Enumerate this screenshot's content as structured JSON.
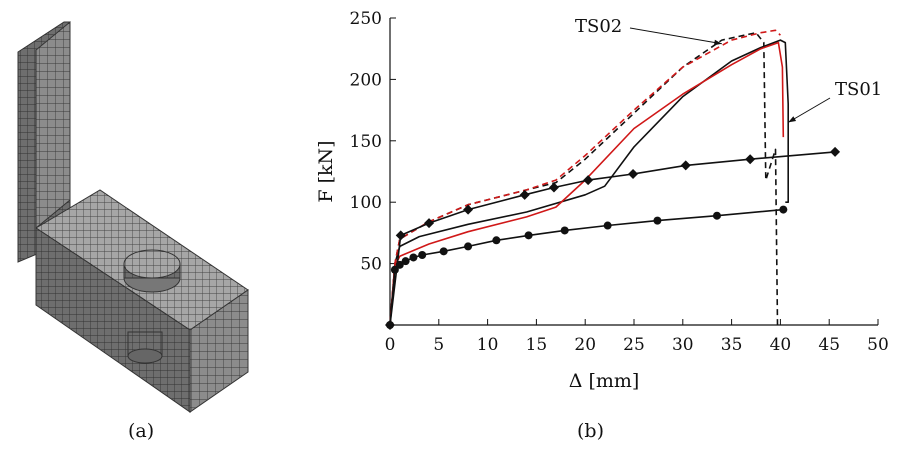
{
  "panels": {
    "a": {
      "label": "(a)"
    },
    "b": {
      "label": "(b)"
    }
  },
  "colors": {
    "axis": "#111111",
    "black_series": "#111111",
    "red_series": "#d01818",
    "mesh_face_front": "#8c8c8c",
    "mesh_face_side": "#6e6e6e",
    "mesh_face_top": "#a8a8a8",
    "mesh_line": "#3a3a3a"
  },
  "chart_data": {
    "type": "line",
    "title": "",
    "xlabel": "Δ [mm]",
    "ylabel": "F [kN]",
    "xlim": [
      0,
      50
    ],
    "ylim": [
      0,
      250
    ],
    "xticks": [
      0,
      5,
      10,
      15,
      20,
      25,
      30,
      35,
      40,
      45,
      50
    ],
    "yticks": [
      50,
      100,
      150,
      200,
      250
    ],
    "grid": false,
    "annotations": [
      {
        "text": "TS02",
        "arrow_to": [
          34,
          229
        ]
      },
      {
        "text": "TS01",
        "arrow_to": [
          40.8,
          165
        ]
      }
    ],
    "series": [
      {
        "color": "black",
        "style": "solid",
        "x": [
          0,
          0.5,
          1.0,
          3,
          8,
          14,
          20,
          22,
          25,
          30,
          35,
          38,
          40,
          40.5,
          40.8,
          40.8,
          40.5
        ],
        "y": [
          0,
          50,
          64,
          72,
          82,
          92,
          106,
          113,
          145,
          186,
          215,
          226,
          232,
          230,
          180,
          100,
          100
        ]
      },
      {
        "color": "black",
        "style": "dashed",
        "x": [
          0,
          0.5,
          1.0,
          4,
          8,
          14,
          17,
          20,
          24,
          30,
          34,
          37.5,
          38.3,
          38.5,
          39.5,
          39.7
        ],
        "y": [
          0,
          50,
          70,
          84,
          98,
          110,
          116,
          135,
          165,
          210,
          232,
          238,
          230,
          118,
          143,
          0
        ]
      },
      {
        "color": "red",
        "style": "solid",
        "x": [
          0,
          0.5,
          1.0,
          4,
          8,
          14,
          17,
          20,
          25,
          30,
          35,
          38,
          39.8,
          40.2,
          40.3
        ],
        "y": [
          0,
          48,
          56,
          66,
          76,
          88,
          96,
          118,
          160,
          188,
          212,
          225,
          230,
          210,
          153
        ]
      },
      {
        "color": "red",
        "style": "dashed",
        "x": [
          0,
          0.5,
          1.0,
          4,
          8,
          14,
          17,
          20,
          25,
          30,
          35,
          38,
          39.5,
          40
        ],
        "y": [
          0,
          50,
          70,
          84,
          98,
          110,
          118,
          138,
          175,
          210,
          232,
          238,
          240,
          236
        ]
      },
      {
        "color": "black",
        "style": "solid-diamond-markers",
        "x": [
          0,
          1.1,
          4.0,
          8.0,
          13.8,
          16.8,
          20.3,
          24.9,
          30.3,
          36.9,
          45.6
        ],
        "y": [
          0,
          73,
          83,
          94,
          106,
          112,
          118,
          123,
          130,
          135,
          141
        ]
      },
      {
        "color": "black",
        "style": "solid-circle-markers",
        "x": [
          0,
          0.5,
          1.0,
          1.6,
          2.4,
          3.3,
          5.5,
          8.0,
          10.9,
          14.2,
          17.9,
          22.3,
          27.4,
          33.5,
          40.3
        ],
        "y": [
          0,
          45,
          49,
          52,
          55,
          57,
          60,
          64,
          69,
          73,
          77,
          81,
          85,
          89,
          94
        ]
      }
    ]
  }
}
